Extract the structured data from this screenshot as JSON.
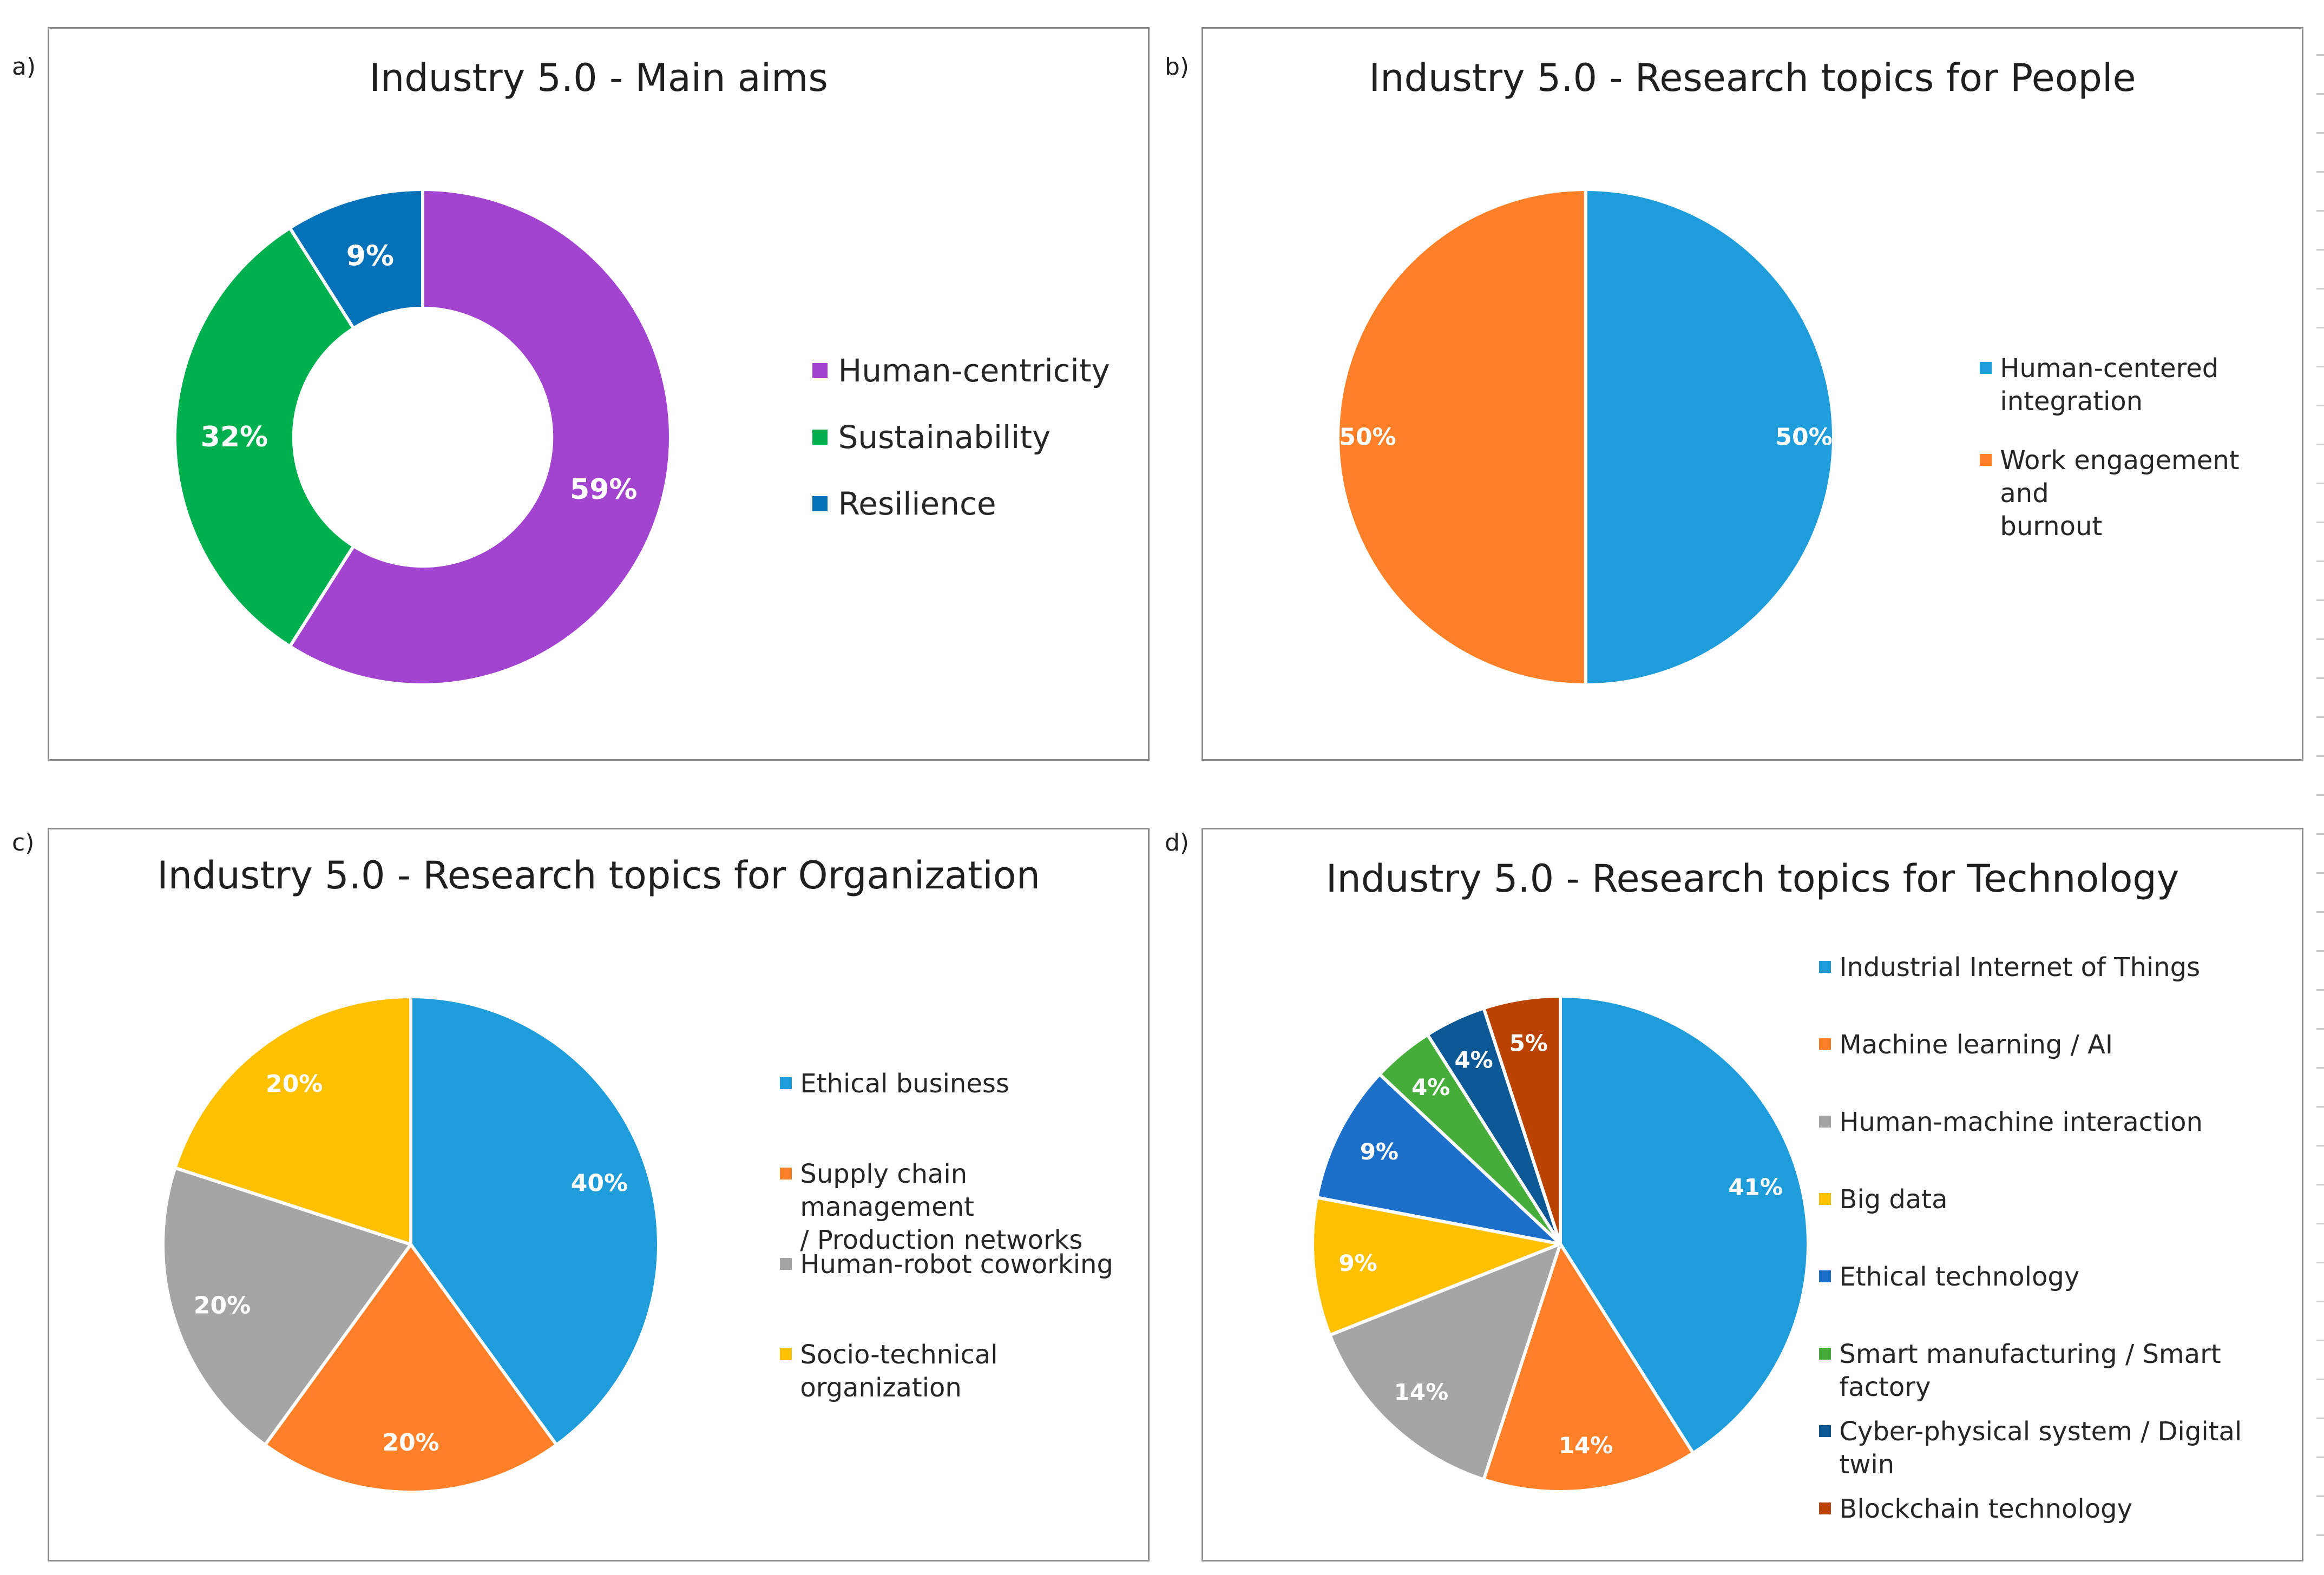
{
  "charts": [
    {
      "letter": "a)",
      "type": "donut",
      "title": "Industry 5.0 - Main aims",
      "slices": [
        {
          "label": "Human-centricity",
          "value": 59,
          "text": "59%",
          "color": "#A244CF"
        },
        {
          "label": "Sustainability",
          "value": 32,
          "text": "32%",
          "color": "#00B04F"
        },
        {
          "label": "Resilience",
          "value": 9,
          "text": "9%",
          "color": "#0471B8"
        }
      ]
    },
    {
      "letter": "b)",
      "type": "pie",
      "title": "Industry 5.0 - Research topics for People",
      "slices": [
        {
          "label": "Human-centered integration",
          "value": 50,
          "text": "50%",
          "color": "#1F9DDB"
        },
        {
          "label": "Work engagement and burnout",
          "value": 50,
          "text": "50%",
          "color": "#FD7F27"
        }
      ]
    },
    {
      "letter": "c)",
      "type": "pie",
      "title": "Industry 5.0 - Research topics for Organization",
      "slices": [
        {
          "label": "Ethical business",
          "value": 40,
          "text": "40%",
          "color": "#1F9DDB"
        },
        {
          "label": "Supply chain management / Production networks",
          "value": 20,
          "text": "20%",
          "color": "#FD7F27"
        },
        {
          "label": "Human-robot coworking",
          "value": 20,
          "text": "20%",
          "color": "#A5A5A5"
        },
        {
          "label": "Socio-technical organization",
          "value": 20,
          "text": "20%",
          "color": "#FFC000"
        }
      ]
    },
    {
      "letter": "d)",
      "type": "pie",
      "title": "Industry 5.0 - Research topics for Technology",
      "slices": [
        {
          "label": "Industrial Internet of Things",
          "value": 41,
          "text": "41%",
          "color": "#1F9DDB"
        },
        {
          "label": "Machine learning / AI",
          "value": 14,
          "text": "14%",
          "color": "#FD7F27"
        },
        {
          "label": "Human-machine interaction",
          "value": 14,
          "text": "14%",
          "color": "#A5A5A5"
        },
        {
          "label": "Big data",
          "value": 9,
          "text": "9%",
          "color": "#FFC000"
        },
        {
          "label": "Ethical technology",
          "value": 9,
          "text": "9%",
          "color": "#1C70C9"
        },
        {
          "label": "Smart manufacturing / Smart factory",
          "value": 4,
          "text": "4%",
          "color": "#46AD3A"
        },
        {
          "label": "Cyber-physical system / Digital twin",
          "value": 4,
          "text": "4%",
          "color": "#0B5895"
        },
        {
          "label": "Blockchain technology",
          "value": 5,
          "text": "5%",
          "color": "#BB4301"
        }
      ]
    }
  ],
  "chart_data": [
    {
      "type": "pie",
      "title": "Industry 5.0 - Main aims",
      "categories": [
        "Human-centricity",
        "Sustainability",
        "Resilience"
      ],
      "values": [
        59,
        32,
        9
      ],
      "unit": "%",
      "legend": "right"
    },
    {
      "type": "pie",
      "title": "Industry 5.0 - Research topics for People",
      "categories": [
        "Human-centered integration",
        "Work engagement and burnout"
      ],
      "values": [
        50,
        50
      ],
      "unit": "%",
      "legend": "right"
    },
    {
      "type": "pie",
      "title": "Industry 5.0 - Research topics for Organization",
      "categories": [
        "Ethical business",
        "Supply chain management / Production networks",
        "Human-robot coworking",
        "Socio-technical organization"
      ],
      "values": [
        40,
        20,
        20,
        20
      ],
      "unit": "%",
      "legend": "right"
    },
    {
      "type": "pie",
      "title": "Industry 5.0 - Research topics for Technology",
      "categories": [
        "Industrial Internet of Things",
        "Machine learning / AI",
        "Human-machine interaction",
        "Big data",
        "Ethical technology",
        "Smart manufacturing / Smart factory",
        "Cyber-physical system / Digital twin",
        "Blockchain technology"
      ],
      "values": [
        41,
        14,
        14,
        9,
        9,
        4,
        4,
        5
      ],
      "unit": "%",
      "legend": "right"
    }
  ]
}
